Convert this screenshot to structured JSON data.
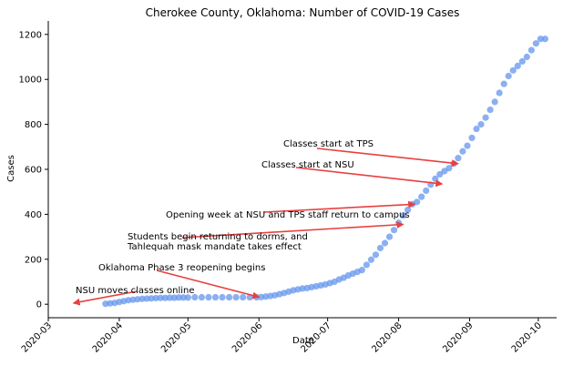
{
  "chart_data": {
    "type": "scatter",
    "title": "Cherokee County, Oklahoma: Number of COVID-19 Cases",
    "xlabel": "Date",
    "ylabel": "Cases",
    "xlim": [
      "2020-03-01",
      "2020-10-09"
    ],
    "ylim": [
      -60,
      1260
    ],
    "x_ticks": [
      "2020-03",
      "2020-04",
      "2020-05",
      "2020-06",
      "2020-07",
      "2020-08",
      "2020-09",
      "2020-10"
    ],
    "y_ticks": [
      0,
      200,
      400,
      600,
      800,
      1000,
      1200
    ],
    "grid": false,
    "marker_color": "#6495ED",
    "arrow_color": "#E8403F",
    "series": [
      {
        "x": [
          "2020-03-26",
          "2020-03-28",
          "2020-03-30",
          "2020-04-01",
          "2020-04-03",
          "2020-04-05",
          "2020-04-07",
          "2020-04-09",
          "2020-04-11",
          "2020-04-13",
          "2020-04-15",
          "2020-04-17",
          "2020-04-19",
          "2020-04-21",
          "2020-04-23",
          "2020-04-25",
          "2020-04-27",
          "2020-04-29",
          "2020-05-01",
          "2020-05-04",
          "2020-05-07",
          "2020-05-10",
          "2020-05-13",
          "2020-05-16",
          "2020-05-19",
          "2020-05-22",
          "2020-05-25",
          "2020-05-28",
          "2020-05-31",
          "2020-06-02",
          "2020-06-04",
          "2020-06-06",
          "2020-06-08",
          "2020-06-10",
          "2020-06-12",
          "2020-06-14",
          "2020-06-16",
          "2020-06-18",
          "2020-06-20",
          "2020-06-22",
          "2020-06-24",
          "2020-06-26",
          "2020-06-28",
          "2020-06-30",
          "2020-07-02",
          "2020-07-04",
          "2020-07-06",
          "2020-07-08",
          "2020-07-10",
          "2020-07-12",
          "2020-07-14",
          "2020-07-16",
          "2020-07-18",
          "2020-07-20",
          "2020-07-22",
          "2020-07-24",
          "2020-07-26",
          "2020-07-28",
          "2020-07-30",
          "2020-08-01",
          "2020-08-03",
          "2020-08-05",
          "2020-08-07",
          "2020-08-09",
          "2020-08-11",
          "2020-08-13",
          "2020-08-15",
          "2020-08-17",
          "2020-08-19",
          "2020-08-21",
          "2020-08-23",
          "2020-08-25",
          "2020-08-27",
          "2020-08-29",
          "2020-08-31",
          "2020-09-02",
          "2020-09-04",
          "2020-09-06",
          "2020-09-08",
          "2020-09-10",
          "2020-09-12",
          "2020-09-14",
          "2020-09-16",
          "2020-09-18",
          "2020-09-20",
          "2020-09-22",
          "2020-09-24",
          "2020-09-26",
          "2020-09-28",
          "2020-09-30",
          "2020-10-02",
          "2020-10-04"
        ],
        "y": [
          2,
          4,
          6,
          10,
          14,
          18,
          20,
          22,
          24,
          25,
          26,
          27,
          28,
          28,
          29,
          29,
          30,
          30,
          30,
          31,
          31,
          31,
          31,
          31,
          31,
          31,
          31,
          31,
          31,
          32,
          34,
          37,
          40,
          45,
          50,
          56,
          62,
          66,
          70,
          72,
          76,
          80,
          84,
          88,
          94,
          100,
          110,
          118,
          128,
          136,
          144,
          152,
          175,
          198,
          220,
          250,
          272,
          300,
          330,
          362,
          395,
          420,
          445,
          455,
          478,
          505,
          532,
          558,
          578,
          592,
          605,
          625,
          650,
          680,
          705,
          740,
          780,
          800,
          830,
          865,
          900,
          940,
          980,
          1015,
          1040,
          1060,
          1080,
          1100,
          1130,
          1160,
          1180,
          1180
        ]
      }
    ],
    "annotations": [
      {
        "text": "NSU moves classes online",
        "point": [
          "2020-03-12",
          5
        ]
      },
      {
        "text": "Oklahoma Phase 3 reopening begins",
        "point": [
          "2020-06-01",
          32
        ]
      },
      {
        "text": "Students begin returning to dorms, and",
        "text2": "Tahlequah mask mandate takes effect",
        "point": [
          "2020-08-03",
          355
        ]
      },
      {
        "text": "Opening week at NSU and TPS staff return to campus",
        "point": [
          "2020-08-08",
          445
        ]
      },
      {
        "text": "Classes start at NSU",
        "point": [
          "2020-08-20",
          535
        ]
      },
      {
        "text": "Classes start at TPS",
        "point": [
          "2020-08-27",
          625
        ]
      }
    ]
  }
}
